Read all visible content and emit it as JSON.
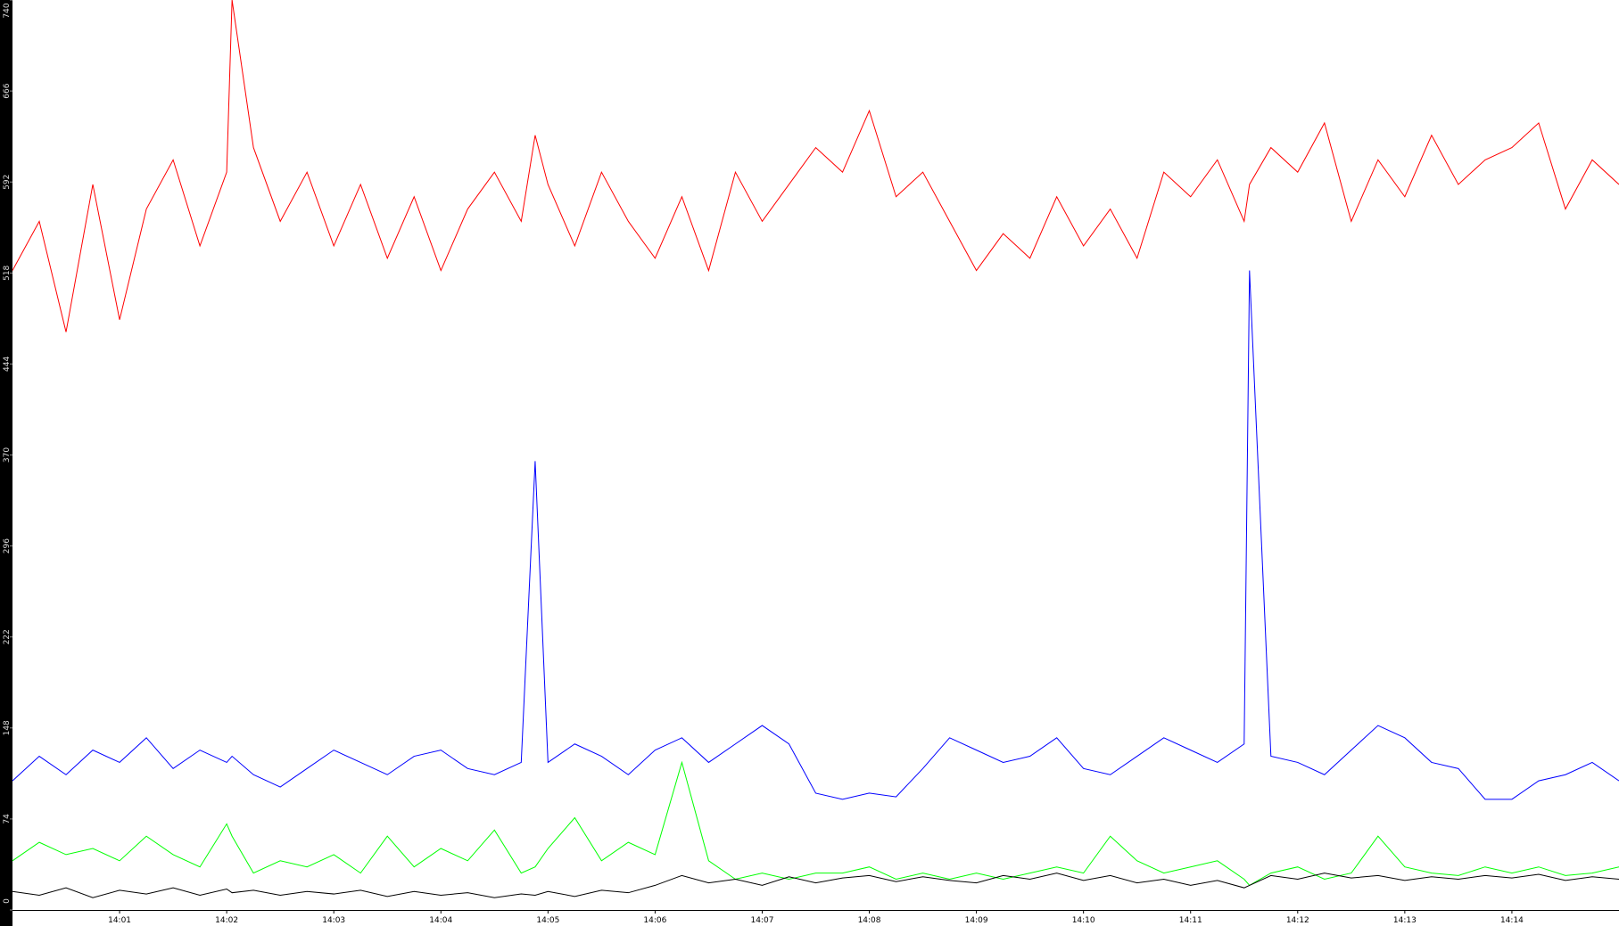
{
  "chart_data": {
    "type": "line",
    "x": [
      0,
      0.25,
      0.5,
      0.75,
      1,
      1.25,
      1.5,
      1.75,
      2,
      2.05,
      2.25,
      2.5,
      2.75,
      3,
      3.25,
      3.5,
      3.75,
      4,
      4.25,
      4.5,
      4.75,
      4.88,
      5,
      5.25,
      5.5,
      5.75,
      6,
      6.25,
      6.5,
      6.75,
      7,
      7.25,
      7.5,
      7.75,
      8,
      8.25,
      8.5,
      8.75,
      9,
      9.25,
      9.5,
      9.75,
      10,
      10.25,
      10.5,
      10.75,
      11,
      11.25,
      11.5,
      11.55,
      11.75,
      12,
      12.25,
      12.5,
      12.75,
      13,
      13.25,
      13.5,
      13.75,
      14,
      14.25,
      14.5,
      14.75,
      15
    ],
    "series": [
      {
        "color": "#ff0000",
        "values": [
          520,
          560,
          470,
          590,
          480,
          570,
          610,
          540,
          600,
          740,
          620,
          560,
          600,
          540,
          590,
          530,
          580,
          520,
          570,
          600,
          560,
          630,
          590,
          540,
          600,
          560,
          530,
          580,
          520,
          600,
          560,
          590,
          620,
          600,
          650,
          580,
          600,
          560,
          520,
          550,
          530,
          580,
          540,
          570,
          530,
          600,
          580,
          610,
          560,
          590,
          620,
          600,
          640,
          560,
          610,
          580,
          630,
          590,
          610,
          620,
          640,
          570,
          610,
          590
        ]
      },
      {
        "color": "#0000ff",
        "values": [
          105,
          125,
          110,
          130,
          120,
          140,
          115,
          130,
          120,
          125,
          110,
          100,
          115,
          130,
          120,
          110,
          125,
          130,
          115,
          110,
          120,
          365,
          120,
          135,
          125,
          110,
          130,
          140,
          120,
          135,
          150,
          135,
          95,
          90,
          95,
          92,
          115,
          140,
          130,
          120,
          125,
          140,
          115,
          110,
          125,
          140,
          130,
          120,
          135,
          520,
          125,
          120,
          110,
          130,
          150,
          140,
          120,
          115,
          90,
          90,
          105,
          110,
          120,
          105
        ]
      },
      {
        "color": "#00ff00",
        "values": [
          40,
          55,
          45,
          50,
          40,
          60,
          45,
          35,
          70,
          60,
          30,
          40,
          35,
          45,
          30,
          60,
          35,
          50,
          40,
          65,
          30,
          35,
          50,
          75,
          40,
          55,
          45,
          120,
          40,
          25,
          30,
          25,
          30,
          30,
          35,
          25,
          30,
          25,
          30,
          25,
          30,
          35,
          30,
          60,
          40,
          30,
          35,
          40,
          25,
          20,
          30,
          35,
          25,
          30,
          60,
          35,
          30,
          28,
          35,
          30,
          35,
          28,
          30,
          35
        ]
      },
      {
        "color": "#000000",
        "values": [
          15,
          12,
          18,
          10,
          16,
          13,
          18,
          12,
          17,
          14,
          16,
          12,
          15,
          13,
          16,
          11,
          15,
          12,
          14,
          10,
          13,
          12,
          15,
          11,
          16,
          14,
          20,
          28,
          22,
          25,
          20,
          27,
          22,
          26,
          28,
          23,
          27,
          24,
          22,
          28,
          25,
          30,
          24,
          28,
          22,
          25,
          20,
          24,
          18,
          20,
          28,
          25,
          30,
          26,
          28,
          24,
          27,
          25,
          28,
          26,
          29,
          24,
          27,
          25
        ]
      }
    ],
    "xlim": [
      0,
      15
    ],
    "xticks": [
      {
        "value": 1,
        "label": "14:01"
      },
      {
        "value": 2,
        "label": "14:02"
      },
      {
        "value": 3,
        "label": "14:03"
      },
      {
        "value": 4,
        "label": "14:04"
      },
      {
        "value": 5,
        "label": "14:05"
      },
      {
        "value": 6,
        "label": "14:06"
      },
      {
        "value": 7,
        "label": "14:07"
      },
      {
        "value": 8,
        "label": "14:08"
      },
      {
        "value": 9,
        "label": "14:09"
      },
      {
        "value": 10,
        "label": "14:10"
      },
      {
        "value": 11,
        "label": "14:11"
      },
      {
        "value": 12,
        "label": "14:12"
      },
      {
        "value": 13,
        "label": "14:13"
      },
      {
        "value": 14,
        "label": "14:14"
      }
    ],
    "ylim": [
      0,
      740
    ],
    "yticks": [
      0,
      74,
      148,
      222,
      296,
      370,
      444,
      518,
      592,
      666,
      740
    ]
  }
}
